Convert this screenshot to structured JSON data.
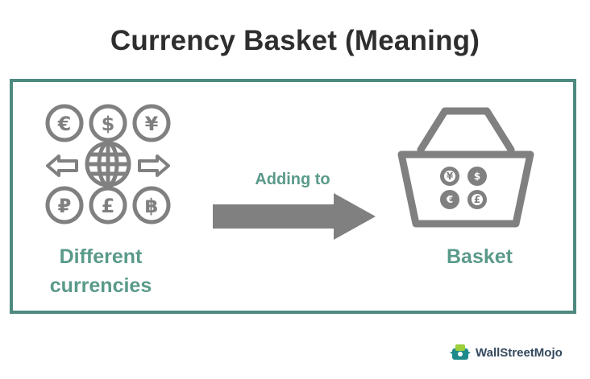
{
  "title": "Currency Basket (Meaning)",
  "left_label_line1": "Different",
  "left_label_line2": "currencies",
  "arrow_label": "Adding to",
  "right_label": "Basket",
  "left_symbols": [
    "€",
    "$",
    "¥",
    "₽",
    "£",
    "฿"
  ],
  "basket_symbols": [
    "¥",
    "$",
    "€",
    "£"
  ],
  "logo_text": "WallStreetMojo",
  "colors": {
    "frame": "#4e8a7f",
    "label": "#5a9a8a",
    "icon": "#808080",
    "title": "#2e2e2e"
  }
}
